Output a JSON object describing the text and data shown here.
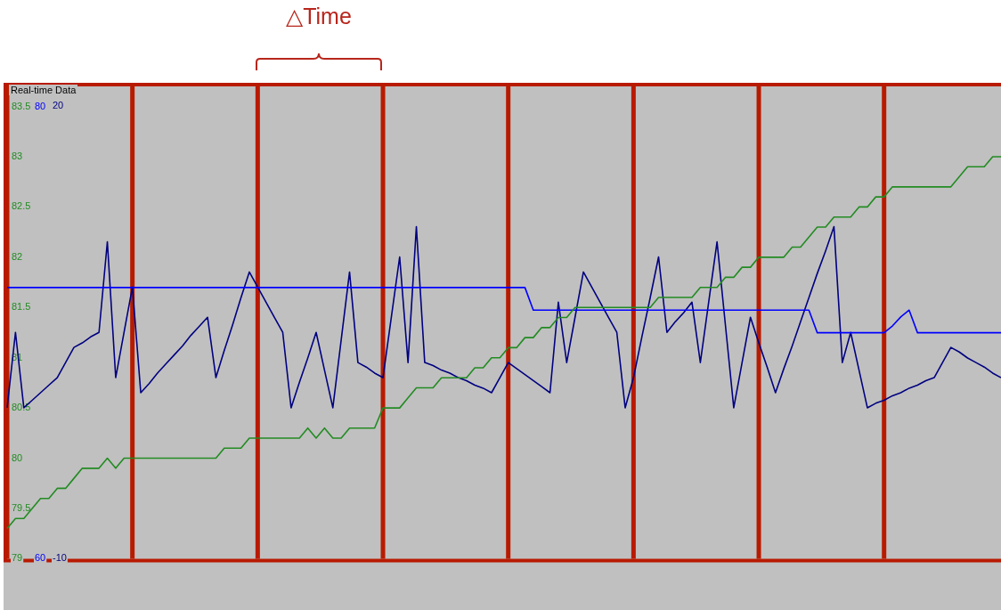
{
  "chart_data": {
    "type": "line",
    "title": "Real-time Data",
    "annotations": [
      "△Time"
    ],
    "categories": [
      null,
      null,
      null,
      null,
      null,
      null,
      null,
      null,
      null,
      null,
      null,
      null,
      null,
      null,
      null,
      null,
      null,
      null,
      null,
      null,
      null,
      null,
      null,
      null,
      null,
      null,
      null,
      null,
      null,
      null,
      null,
      null,
      null,
      null,
      null,
      null,
      null,
      null,
      null,
      null,
      null,
      null,
      null,
      null,
      null,
      null,
      null,
      null,
      null,
      null,
      null,
      null,
      null,
      null,
      null,
      null,
      null,
      null,
      null,
      null,
      null,
      null,
      null,
      null,
      null,
      null,
      null,
      null,
      null,
      null,
      null,
      null,
      null,
      null,
      null,
      null,
      null,
      null,
      null,
      null,
      null,
      null,
      null,
      null,
      null,
      null,
      null,
      null,
      null,
      null,
      null,
      null,
      null,
      null,
      null,
      null,
      null,
      null,
      null,
      null,
      null,
      null,
      null,
      null,
      null,
      null,
      null,
      null,
      null,
      null,
      null,
      null,
      null,
      null,
      null,
      null,
      null,
      null,
      null,
      null
    ],
    "ylim": [
      79,
      83.7
    ],
    "yticks": [
      79,
      79.5,
      80,
      80.5,
      81,
      81.5,
      82,
      82.5,
      83,
      83.5
    ],
    "y2lim": [
      60,
      80.9
    ],
    "y2ticks": [
      60,
      80
    ],
    "y3lim": [
      -10,
      21.3
    ],
    "y3ticks": [
      -10,
      20
    ],
    "grid": "x",
    "series": [
      {
        "color": "#228b22",
        "values": [
          79.3,
          79.4,
          79.4,
          79.5,
          79.6,
          79.6,
          79.7,
          79.7,
          79.8,
          79.9,
          79.9,
          79.9,
          80.0,
          79.9,
          80.0,
          80.0,
          80.0,
          80.0,
          80.0,
          80.0,
          80.0,
          80.0,
          80.0,
          80.0,
          80.0,
          80.0,
          80.1,
          80.1,
          80.1,
          80.2,
          80.2,
          80.2,
          80.2,
          80.2,
          80.2,
          80.2,
          80.3,
          80.2,
          80.3,
          80.2,
          80.2,
          80.3,
          80.3,
          80.3,
          80.3,
          80.5,
          80.5,
          80.5,
          80.6,
          80.7,
          80.7,
          80.7,
          80.8,
          80.8,
          80.8,
          80.8,
          80.9,
          80.9,
          81.0,
          81.0,
          81.1,
          81.1,
          81.2,
          81.2,
          81.3,
          81.3,
          81.4,
          81.4,
          81.5,
          81.5,
          81.5,
          81.5,
          81.5,
          81.5,
          81.5,
          81.5,
          81.5,
          81.5,
          81.6,
          81.6,
          81.6,
          81.6,
          81.6,
          81.7,
          81.7,
          81.7,
          81.8,
          81.8,
          81.9,
          81.9,
          82.0,
          82.0,
          82.0,
          82.0,
          82.1,
          82.1,
          82.2,
          82.3,
          82.3,
          82.4,
          82.4,
          82.4,
          82.5,
          82.5,
          82.6,
          82.6,
          82.7,
          82.7,
          82.7,
          82.7,
          82.7,
          82.7,
          82.7,
          82.7,
          82.8,
          82.9,
          82.9,
          82.9,
          83.0,
          83.0
        ]
      },
      {
        "color": "#0000ff",
        "axis": "y2",
        "values": [
          72,
          72,
          72,
          72,
          72,
          72,
          72,
          72,
          72,
          72,
          72,
          72,
          72,
          72,
          72,
          72,
          72,
          72,
          72,
          72,
          72,
          72,
          72,
          72,
          72,
          72,
          72,
          72,
          72,
          72,
          72,
          72,
          72,
          72,
          72,
          72,
          72,
          72,
          72,
          72,
          72,
          72,
          72,
          72,
          72,
          72,
          72,
          72,
          72,
          72,
          72,
          72,
          72,
          72,
          72,
          72,
          72,
          72,
          72,
          72,
          72,
          72,
          72,
          71,
          71,
          71,
          71,
          71,
          71,
          71,
          71,
          71,
          71,
          71,
          71,
          71,
          71,
          71,
          71,
          71,
          71,
          71,
          71,
          71,
          71,
          71,
          71,
          71,
          71,
          71,
          71,
          71,
          71,
          71,
          71,
          71,
          71,
          70,
          70,
          70,
          70,
          70,
          70,
          70,
          70,
          70,
          70.3,
          70.7,
          71,
          70,
          70,
          70,
          70,
          70,
          70,
          70,
          70,
          70,
          70,
          70
        ]
      },
      {
        "color": "#000080",
        "axis": "y3",
        "values": [
          0,
          5,
          0,
          0.5,
          1,
          1.5,
          2,
          3,
          4,
          4.3,
          4.7,
          5,
          11,
          2,
          5,
          8,
          1,
          1.6,
          2.3,
          2.9,
          3.5,
          4.1,
          4.8,
          5.4,
          6,
          2,
          3.8,
          5.5,
          7.3,
          9,
          8,
          7,
          6,
          5,
          0,
          1.7,
          3.3,
          5,
          2.5,
          0,
          4.5,
          9,
          3,
          2.7,
          2.3,
          2,
          6,
          10,
          3,
          12,
          3,
          2.8,
          2.5,
          2.3,
          2,
          1.8,
          1.5,
          1.3,
          1,
          2,
          3,
          2.6,
          2.2,
          1.8,
          1.4,
          1,
          7,
          3,
          6,
          9,
          8,
          7,
          6,
          5,
          0,
          2,
          4.7,
          7.3,
          10,
          5,
          5.7,
          6.3,
          7,
          3,
          7,
          11,
          5.5,
          0,
          3,
          6,
          4.3,
          2.7,
          1,
          2.6,
          4.1,
          5.7,
          7.3,
          8.9,
          10.4,
          12,
          3,
          5,
          2.5,
          0,
          0.3,
          0.5,
          0.8,
          1,
          1.3,
          1.5,
          1.8,
          2,
          3,
          4,
          3.7,
          3.3,
          3,
          2.7,
          2.3,
          2
        ]
      }
    ]
  }
}
